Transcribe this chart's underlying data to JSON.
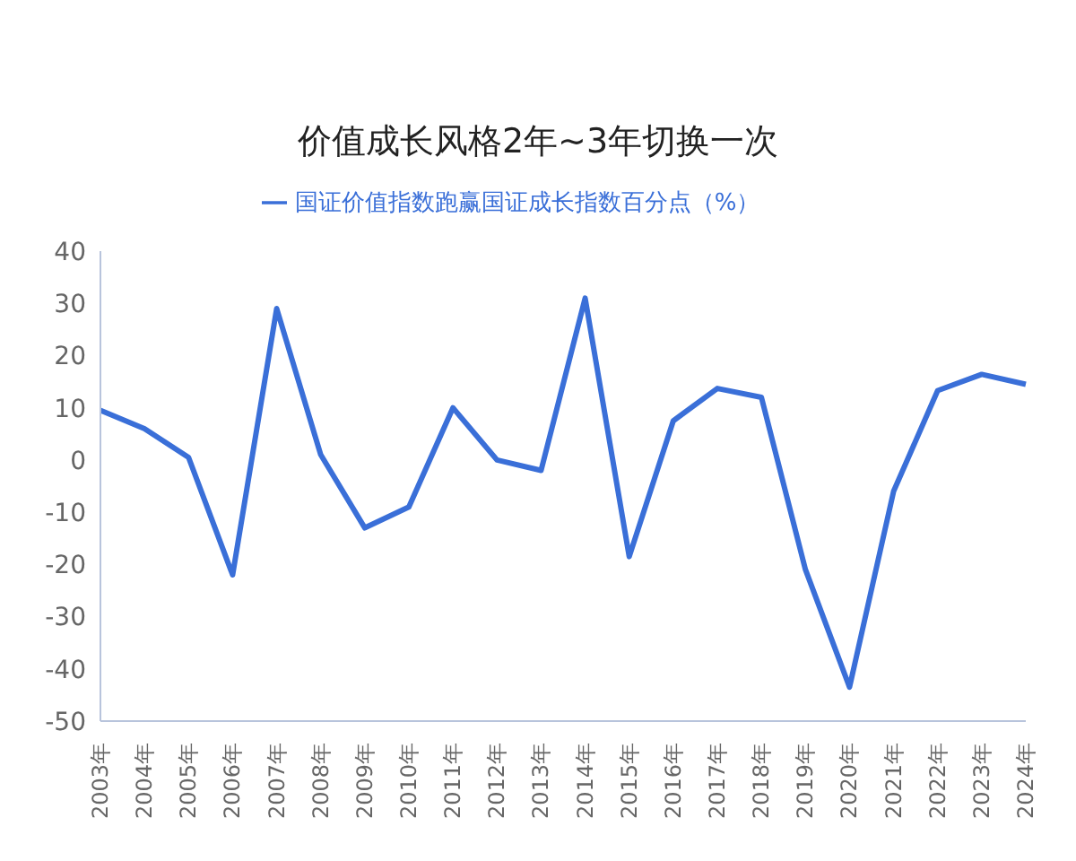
{
  "chart_data": {
    "type": "line",
    "title": "价值成长风格2年~3年切换一次",
    "categories": [
      "2003年",
      "2004年",
      "2005年",
      "2006年",
      "2007年",
      "2008年",
      "2009年",
      "2010年",
      "2011年",
      "2012年",
      "2013年",
      "2014年",
      "2015年",
      "2016年",
      "2017年",
      "2018年",
      "2019年",
      "2020年",
      "2021年",
      "2022年",
      "2023年",
      "2024年"
    ],
    "series": [
      {
        "name": "国证价值指数跑赢国证成长指数百分点（%）",
        "color": "#3a6fd8",
        "values": [
          9.5,
          6,
          0.5,
          -22,
          29,
          1,
          -13,
          -9,
          10,
          0,
          -2,
          31,
          -18.5,
          7.5,
          13.7,
          12,
          -21,
          -43.5,
          -6,
          13.3,
          16.4,
          14.5
        ]
      }
    ],
    "ylim": [
      -50,
      40
    ],
    "yticks": [
      -50,
      -40,
      -30,
      -20,
      -10,
      0,
      10,
      20,
      30,
      40
    ],
    "legend": "top",
    "marker": "none",
    "line_style": "solid"
  }
}
